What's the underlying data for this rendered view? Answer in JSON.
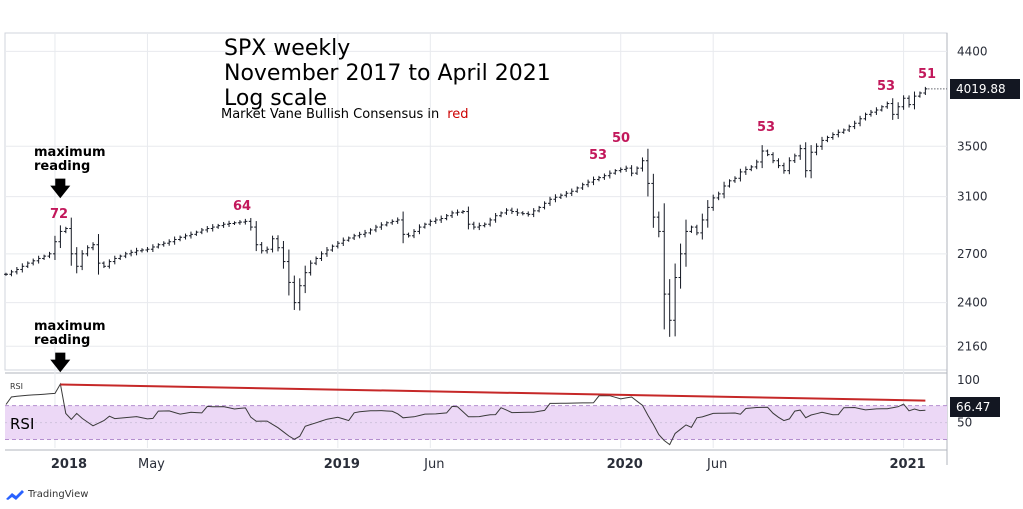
{
  "chart_data": [
    {
      "type": "ohlc-bar",
      "title": "SPX weekly",
      "subtitle_lines": [
        "November 2017 to April 2021",
        "Log scale"
      ],
      "note": "Market Vane Bullish Consensus in",
      "note_color_word": "red",
      "y_scale": "log",
      "ylim": [
        2040,
        4600
      ],
      "y_ticks": [
        4400,
        3500,
        3100,
        2700,
        2400,
        2160
      ],
      "last_price": "4019.88",
      "x_ticks": [
        "2018",
        "May",
        "2019",
        "Jun",
        "2020",
        "Jun",
        "2021"
      ],
      "price_path": [
        [
          0,
          2570
        ],
        [
          2,
          2600
        ],
        [
          4,
          2640
        ],
        [
          6,
          2670
        ],
        [
          8,
          2700
        ],
        [
          9,
          2780
        ],
        [
          10,
          2850
        ],
        [
          11,
          2870
        ],
        [
          12,
          2700
        ],
        [
          13,
          2620
        ],
        [
          14,
          2700
        ],
        [
          15,
          2740
        ],
        [
          16,
          2760
        ],
        [
          17,
          2640
        ],
        [
          18,
          2620
        ],
        [
          19,
          2650
        ],
        [
          20,
          2670
        ],
        [
          22,
          2700
        ],
        [
          24,
          2720
        ],
        [
          26,
          2730
        ],
        [
          28,
          2760
        ],
        [
          30,
          2780
        ],
        [
          32,
          2810
        ],
        [
          34,
          2830
        ],
        [
          36,
          2860
        ],
        [
          38,
          2880
        ],
        [
          40,
          2900
        ],
        [
          42,
          2910
        ],
        [
          44,
          2920
        ],
        [
          45,
          2880
        ],
        [
          46,
          2760
        ],
        [
          47,
          2720
        ],
        [
          48,
          2730
        ],
        [
          49,
          2800
        ],
        [
          50,
          2740
        ],
        [
          51,
          2650
        ],
        [
          52,
          2520
        ],
        [
          53,
          2400
        ],
        [
          54,
          2500
        ],
        [
          55,
          2580
        ],
        [
          56,
          2640
        ],
        [
          58,
          2700
        ],
        [
          60,
          2750
        ],
        [
          62,
          2790
        ],
        [
          64,
          2820
        ],
        [
          66,
          2840
        ],
        [
          68,
          2880
        ],
        [
          70,
          2910
        ],
        [
          72,
          2930
        ],
        [
          73,
          2830
        ],
        [
          74,
          2820
        ],
        [
          76,
          2880
        ],
        [
          78,
          2920
        ],
        [
          80,
          2940
        ],
        [
          82,
          2980
        ],
        [
          84,
          2990
        ],
        [
          85,
          2900
        ],
        [
          86,
          2880
        ],
        [
          88,
          2900
        ],
        [
          90,
          2960
        ],
        [
          92,
          3000
        ],
        [
          94,
          2980
        ],
        [
          96,
          2970
        ],
        [
          98,
          3020
        ],
        [
          100,
          3080
        ],
        [
          102,
          3110
        ],
        [
          104,
          3140
        ],
        [
          106,
          3190
        ],
        [
          108,
          3230
        ],
        [
          110,
          3260
        ],
        [
          112,
          3300
        ],
        [
          114,
          3320
        ],
        [
          115,
          3280
        ],
        [
          116,
          3320
        ],
        [
          117,
          3380
        ],
        [
          118,
          3200
        ],
        [
          119,
          2950
        ],
        [
          120,
          2850
        ],
        [
          121,
          2450
        ],
        [
          122,
          2300
        ],
        [
          123,
          2550
        ],
        [
          124,
          2700
        ],
        [
          125,
          2850
        ],
        [
          126,
          2880
        ],
        [
          127,
          2840
        ],
        [
          128,
          2930
        ],
        [
          129,
          3020
        ],
        [
          130,
          3090
        ],
        [
          131,
          3120
        ],
        [
          132,
          3180
        ],
        [
          133,
          3220
        ],
        [
          134,
          3240
        ],
        [
          135,
          3290
        ],
        [
          136,
          3310
        ],
        [
          137,
          3330
        ],
        [
          138,
          3370
        ],
        [
          139,
          3460
        ],
        [
          140,
          3430
        ],
        [
          141,
          3380
        ],
        [
          142,
          3340
        ],
        [
          143,
          3300
        ],
        [
          144,
          3380
        ],
        [
          145,
          3420
        ],
        [
          146,
          3480
        ],
        [
          147,
          3300
        ],
        [
          148,
          3450
        ],
        [
          150,
          3550
        ],
        [
          152,
          3600
        ],
        [
          154,
          3640
        ],
        [
          156,
          3700
        ],
        [
          158,
          3780
        ],
        [
          160,
          3820
        ],
        [
          162,
          3880
        ],
        [
          163,
          3780
        ],
        [
          164,
          3850
        ],
        [
          165,
          3930
        ],
        [
          166,
          3870
        ],
        [
          167,
          3950
        ],
        [
          168,
          3980
        ],
        [
          169,
          4020
        ]
      ],
      "market_vane_labels": [
        {
          "label": "72",
          "week": 10
        },
        {
          "label": "64",
          "week": 44
        },
        {
          "label": "53",
          "week": 110
        },
        {
          "label": "50",
          "week": 115
        },
        {
          "label": "53",
          "week": 141
        },
        {
          "label": "53",
          "week": 163
        },
        {
          "label": "51",
          "week": 169
        }
      ],
      "annotations": [
        {
          "text_lines": [
            "maximum",
            "reading"
          ],
          "target": "price-72"
        },
        {
          "text_lines": [
            "maximum",
            "reading"
          ],
          "target": "rsi-peak"
        }
      ]
    },
    {
      "type": "line",
      "name": "RSI",
      "panel_label_small": "RSI",
      "panel_label": "RSI",
      "ylim": [
        20,
        105
      ],
      "y_ticks": [
        100,
        50
      ],
      "band": [
        30,
        70
      ],
      "last_value": "66.47",
      "trendline_from": {
        "week": 10,
        "value": 95
      },
      "trendline_to": {
        "week": 169,
        "value": 76
      },
      "rsi_path": [
        [
          0,
          75
        ],
        [
          3,
          80
        ],
        [
          6,
          84
        ],
        [
          9,
          88
        ],
        [
          10,
          92
        ],
        [
          11,
          58
        ],
        [
          12,
          52
        ],
        [
          13,
          60
        ],
        [
          14,
          55
        ],
        [
          16,
          48
        ],
        [
          18,
          56
        ],
        [
          20,
          52
        ],
        [
          22,
          55
        ],
        [
          24,
          58
        ],
        [
          26,
          57
        ],
        [
          28,
          60
        ],
        [
          30,
          62
        ],
        [
          32,
          60
        ],
        [
          34,
          64
        ],
        [
          36,
          65
        ],
        [
          38,
          66
        ],
        [
          40,
          68
        ],
        [
          42,
          67
        ],
        [
          44,
          70
        ],
        [
          45,
          60
        ],
        [
          46,
          48
        ],
        [
          48,
          50
        ],
        [
          50,
          44
        ],
        [
          52,
          36
        ],
        [
          53,
          33
        ],
        [
          55,
          42
        ],
        [
          57,
          48
        ],
        [
          59,
          54
        ],
        [
          61,
          58
        ],
        [
          63,
          56
        ],
        [
          65,
          60
        ],
        [
          67,
          63
        ],
        [
          69,
          65
        ],
        [
          71,
          66
        ],
        [
          72,
          64
        ],
        [
          73,
          52
        ],
        [
          75,
          55
        ],
        [
          77,
          60
        ],
        [
          79,
          62
        ],
        [
          81,
          65
        ],
        [
          83,
          66
        ],
        [
          85,
          56
        ],
        [
          87,
          58
        ],
        [
          89,
          62
        ],
        [
          91,
          64
        ],
        [
          93,
          60
        ],
        [
          95,
          62
        ],
        [
          97,
          64
        ],
        [
          99,
          68
        ],
        [
          101,
          70
        ],
        [
          103,
          72
        ],
        [
          105,
          74
        ],
        [
          107,
          76
        ],
        [
          109,
          78
        ],
        [
          111,
          80
        ],
        [
          113,
          78
        ],
        [
          115,
          82
        ],
        [
          116,
          78
        ],
        [
          117,
          74
        ],
        [
          118,
          55
        ],
        [
          119,
          45
        ],
        [
          120,
          34
        ],
        [
          121,
          28
        ],
        [
          122,
          24
        ],
        [
          123,
          38
        ],
        [
          124,
          44
        ],
        [
          125,
          50
        ],
        [
          126,
          48
        ],
        [
          127,
          52
        ],
        [
          128,
          54
        ],
        [
          130,
          60
        ],
        [
          132,
          62
        ],
        [
          134,
          64
        ],
        [
          136,
          63
        ],
        [
          138,
          66
        ],
        [
          140,
          68
        ],
        [
          141,
          62
        ],
        [
          142,
          58
        ],
        [
          143,
          55
        ],
        [
          144,
          58
        ],
        [
          145,
          60
        ],
        [
          146,
          62
        ],
        [
          147,
          54
        ],
        [
          148,
          58
        ],
        [
          150,
          63
        ],
        [
          152,
          62
        ],
        [
          154,
          64
        ],
        [
          156,
          66
        ],
        [
          158,
          65
        ],
        [
          160,
          68
        ],
        [
          162,
          70
        ],
        [
          163,
          64
        ],
        [
          164,
          66
        ],
        [
          165,
          70
        ],
        [
          166,
          63
        ],
        [
          167,
          66
        ],
        [
          168,
          65
        ],
        [
          169,
          66.47
        ]
      ]
    }
  ],
  "price_axis_colors": {
    "bar": "#131722",
    "grid": "#e8eaee",
    "axis": "#2a2e39",
    "mv": "#c2185b"
  },
  "rsi_colors": {
    "line": "#3a3a3a",
    "band": "#ecd8f6",
    "band_border": "#b48ecf",
    "trend": "#c62828"
  },
  "brand": "TradingView"
}
